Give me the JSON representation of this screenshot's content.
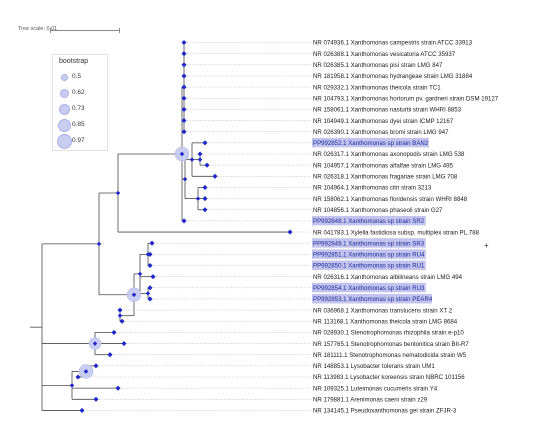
{
  "scale": {
    "label": "Tree scale: 0.01"
  },
  "legend": {
    "title": "bootstrap",
    "values": [
      "0.5",
      "0.62",
      "0.73",
      "0.85",
      "0.97"
    ]
  },
  "colors": {
    "branch": "#4a4a4a",
    "node": "#1f28c8",
    "highlight": "#c3c4ee",
    "bubble": "#c9cdf0",
    "leader": "#9e9e9e"
  },
  "taxa": [
    {
      "name": "NR 074936.1 Xanthomonas campestris strain ATCC 33913",
      "highlighted": false
    },
    {
      "name": "NR 026388.1 Xanthomonas vesicatoria ATCC 35937",
      "highlighted": false
    },
    {
      "name": "NR 026385.1 Xanthomonas pisi strain LMG 847",
      "highlighted": false
    },
    {
      "name": "NR 181958.1 Xanthomonas hydrangeae strain LMG 31884",
      "highlighted": false
    },
    {
      "name": "NR 029332.1 Xanthomonas theicola strain TC1",
      "highlighted": false
    },
    {
      "name": "NR 104793.1 Xanthomonas hortorum pv. gardneri strain DSM 19127",
      "highlighted": false
    },
    {
      "name": "NR 158061.1 Xanthomonas nasturtii strain WHRI 8853",
      "highlighted": false
    },
    {
      "name": "NR 104949.1 Xanthomonas dyei strain ICMP 12167",
      "highlighted": false
    },
    {
      "name": "NR 026390.1 Xanthomonas bromi strain LMG 947",
      "highlighted": false
    },
    {
      "name": "PP992852.1 Xanthomonas sp strain BAN2",
      "highlighted": true
    },
    {
      "name": "NR 026317.1 Xanthomonas axonopodis strain LMG 538",
      "highlighted": false
    },
    {
      "name": "NR 104957.1 Xanthomonas alfalfae strain LMG 495",
      "highlighted": false
    },
    {
      "name": "NR 026318.1 Xanthomonas fragariae strain LMG 708",
      "highlighted": false
    },
    {
      "name": "NR 104964.1 Xanthomonas citri strain 3213",
      "highlighted": false
    },
    {
      "name": "NR 158062.1 Xanthomonas floridensis strain WHRI 8848",
      "highlighted": false
    },
    {
      "name": "NR 104856.1 Xanthomonas phaseoli strain G27",
      "highlighted": false
    },
    {
      "name": "PP992848.1 Xanthomonas sp strain SR2",
      "highlighted": true
    },
    {
      "name": "NR 041783.1 Xylella fastidiosa subsp. multiplex strain PL.788",
      "highlighted": false
    },
    {
      "name": "PP992849.1 Xanthomonas sp strain SR3",
      "highlighted": true
    },
    {
      "name": "PP992851.1 Xanthomonas sp strain RU4",
      "highlighted": true
    },
    {
      "name": "PP992850.1 Xanthomonas sp strain RU1",
      "highlighted": true
    },
    {
      "name": "NR 026316.1 Xanthomonas albilineans strain LMG 494",
      "highlighted": false
    },
    {
      "name": "PP992854.1 Xanthomonas sp strain RU3",
      "highlighted": true
    },
    {
      "name": "PP992853.1 Xanthomonas sp strain PEAR4",
      "highlighted": true
    },
    {
      "name": "NR 036968.1 Xanthomonas translucens strain XT 2",
      "highlighted": false
    },
    {
      "name": "NR 113168.1 Xanthomonas theicola strain LMG 8684",
      "highlighted": false
    },
    {
      "name": "NR 028930.1 Stenotrophomonas rhizophila strain e-p10",
      "highlighted": false
    },
    {
      "name": "NR 157765.1 Stenotrophomonas bentonitica strain BII-R7",
      "highlighted": false
    },
    {
      "name": "NR 181111.1 Stenotrophomonas nematodicida strain W5",
      "highlighted": false
    },
    {
      "name": "NR 148853.1 Lysobacter tolerans strain UM1",
      "highlighted": false
    },
    {
      "name": "NR 113983.1 Lysobacter koreensis strain NBRC 101156",
      "highlighted": false
    },
    {
      "name": "NR 109325.1 Luteimonas cucumeris strain Y4",
      "highlighted": false
    },
    {
      "name": "NR 179881.1 Arenimonas caeni strain z29",
      "highlighted": false
    },
    {
      "name": "NR 134145.1 Pseudoxanthomonas gei strain ZFJR-3",
      "highlighted": false
    }
  ],
  "tips": [
    184,
    184,
    184,
    184,
    184,
    184,
    184,
    184,
    184,
    205,
    200,
    207,
    215,
    205,
    205,
    205,
    184,
    290,
    152,
    150,
    150,
    153,
    150,
    150,
    120,
    122,
    114,
    124,
    110,
    96,
    78,
    118,
    96,
    82
  ],
  "tree": {
    "c": [
      {
        "c": [
          {
            "c": [
              {
                "b": 0.97,
                "c": [
                  {
                    "c": [
                      0,
                      1,
                      2,
                      3,
                      4,
                      5,
                      6,
                      7,
                      8
                    ]
                  },
                  {
                    "c": [
                      {
                        "c": [
                          9,
                          {
                            "c": [
                              10,
                              11
                            ]
                          },
                          12
                        ]
                      },
                      {
                        "c": [
                          13,
                          14,
                          15
                        ]
                      }
                    ]
                  },
                  16
                ]
              },
              17
            ]
          },
          {
            "b": 0.97,
            "c": [
              {
                "c": [
                  {
                    "c": [
                      18,
                      19,
                      20
                    ]
                  },
                  21,
                  {
                    "c": [
                      22,
                      23
                    ]
                  }
                ]
              },
              {
                "c": [
                  24,
                  25
                ]
              }
            ]
          }
        ]
      },
      {
        "b": 0.85,
        "c": [
          26,
          27,
          28
        ]
      },
      {
        "c": [
          {
            "b": 0.97,
            "c": [
              29,
              30
            ]
          },
          31,
          32
        ]
      },
      33
    ]
  }
}
